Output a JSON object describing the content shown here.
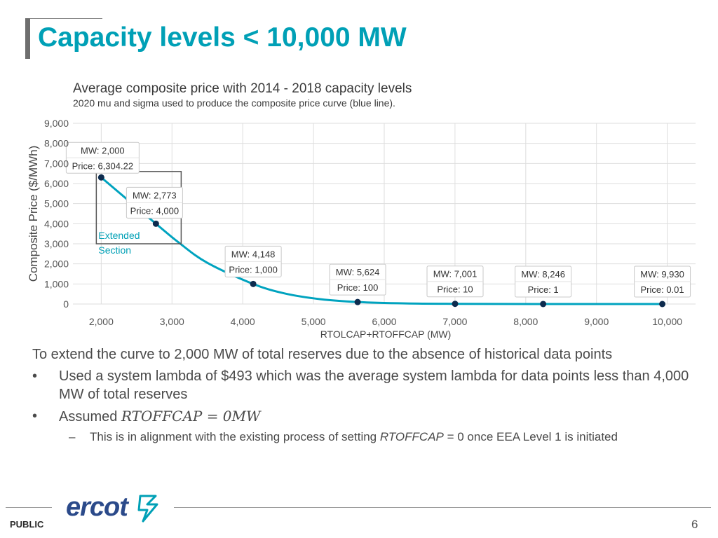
{
  "slide": {
    "title": "Capacity levels < 10,000 MW",
    "footer_label": "PUBLIC",
    "page_number": "6",
    "logo_text": "ercot"
  },
  "body": {
    "intro": "To extend the curve to 2,000 MW of total reserves due to the absence of historical data points",
    "bullet1": "Used a system lambda of $493 which was the average system lambda for data points less than 4,000 MW of total reserves",
    "bullet2_prefix": "Assumed ",
    "bullet2_math": "RTOFFCAP = 0MW",
    "sub_prefix": "This is in alignment with the existing process of setting ",
    "sub_italic": "RTOFFCAP",
    "sub_suffix": " = 0 once EEA  Level 1 is initiated",
    "bullet_symbol": "•",
    "dash_symbol": "–"
  },
  "chart_data": {
    "type": "line",
    "title": "Average composite price with 2014 - 2018 capacity levels",
    "subtitle": "2020 mu and sigma used to produce the composite price curve (blue line).",
    "xlabel": "RTOLCAP+RTOFFCAP (MW)",
    "ylabel": "Composite Price ($/MWh)",
    "xlim": [
      1600,
      10400
    ],
    "ylim": [
      0,
      9000
    ],
    "x_ticks": [
      2000,
      3000,
      4000,
      5000,
      6000,
      7000,
      8000,
      9000,
      10000
    ],
    "x_tick_labels": [
      "2,000",
      "3,000",
      "4,000",
      "5,000",
      "6,000",
      "7,000",
      "8,000",
      "9,000",
      "10,000"
    ],
    "y_ticks": [
      0,
      1000,
      2000,
      3000,
      4000,
      5000,
      6000,
      7000,
      8000,
      9000
    ],
    "y_tick_labels": [
      "0",
      "1,000",
      "2,000",
      "3,000",
      "4,000",
      "5,000",
      "6,000",
      "7,000",
      "8,000",
      "9,000"
    ],
    "grid": true,
    "line_color": "#00a3bf",
    "point_color": "#0d2b4e",
    "series": [
      {
        "values": [
          {
            "x": 2000,
            "y": 6304.22
          },
          {
            "x": 2773,
            "y": 4000
          },
          {
            "x": 3100,
            "y": 3050
          },
          {
            "x": 3500,
            "y": 2050
          },
          {
            "x": 4148,
            "y": 1000
          },
          {
            "x": 4600,
            "y": 520
          },
          {
            "x": 5100,
            "y": 240
          },
          {
            "x": 5624,
            "y": 100
          },
          {
            "x": 6300,
            "y": 30
          },
          {
            "x": 7001,
            "y": 10
          },
          {
            "x": 8246,
            "y": 1
          },
          {
            "x": 9930,
            "y": 0.01
          }
        ]
      }
    ],
    "points": [
      {
        "x": 2000,
        "y": 6304.22,
        "label_mw": "MW: 2,000",
        "label_price": "Price: 6,304.22"
      },
      {
        "x": 2773,
        "y": 4000,
        "label_mw": "MW: 2,773",
        "label_price": "Price: 4,000"
      },
      {
        "x": 4148,
        "y": 1000,
        "label_mw": "MW: 4,148",
        "label_price": "Price: 1,000"
      },
      {
        "x": 5624,
        "y": 100,
        "label_mw": "MW: 5,624",
        "label_price": "Price: 100"
      },
      {
        "x": 7001,
        "y": 10,
        "label_mw": "MW: 7,001",
        "label_price": "Price: 10"
      },
      {
        "x": 8246,
        "y": 1,
        "label_mw": "MW: 8,246",
        "label_price": "Price: 1"
      },
      {
        "x": 9930,
        "y": 0.01,
        "label_mw": "MW: 9,930",
        "label_price": "Price: 0.01"
      }
    ],
    "highlight_box": {
      "x_range": [
        2000,
        3130
      ],
      "y_range": [
        3000,
        6600
      ]
    },
    "annotation": {
      "line1": "Extended",
      "line2": "Section",
      "color": "#00a0b6"
    }
  }
}
